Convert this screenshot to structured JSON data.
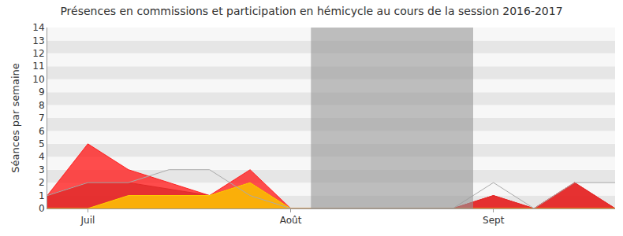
{
  "chart_data": {
    "type": "area",
    "title": "Présences en commissions et participation en hémicycle au cours de la session 2016-2017",
    "y_label": "Séances par semaine",
    "categories": [
      null,
      "Juil",
      null,
      null,
      null,
      null,
      "Août",
      null,
      null,
      null,
      null,
      "Sept",
      null,
      null,
      null
    ],
    "series": [
      {
        "type": "area",
        "color": "#ff2020",
        "values": [
          1,
          5,
          3,
          2,
          1,
          3,
          0,
          0,
          0,
          0,
          0,
          1,
          0,
          2,
          0
        ]
      },
      {
        "type": "area",
        "color": "#e02a2a",
        "values": [
          1,
          2,
          2,
          1.5,
          1,
          2,
          0,
          0,
          0,
          0,
          0,
          1,
          0,
          2,
          0
        ]
      },
      {
        "type": "area",
        "color": "#ffd000",
        "values": [
          0,
          0,
          1,
          1,
          1,
          2,
          0,
          0,
          0,
          0,
          0,
          0,
          0,
          0,
          0
        ]
      },
      {
        "type": "line",
        "color": "#aaaaaa",
        "values": [
          1,
          2,
          2,
          3,
          3,
          1,
          0,
          0,
          0,
          0,
          0,
          2,
          0,
          2,
          2
        ]
      }
    ],
    "vacation": {
      "from": 6.5,
      "to": 10.5
    },
    "ylim": [
      0,
      14
    ],
    "yticks": [
      0,
      1,
      2,
      3,
      4,
      5,
      6,
      7,
      8,
      9,
      10,
      11,
      12,
      13,
      14
    ],
    "grid": true
  }
}
